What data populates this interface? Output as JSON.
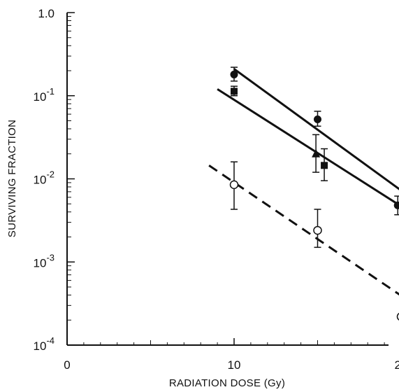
{
  "chart_data": {
    "type": "scatter",
    "title": "",
    "xlabel": "RADIATION DOSE (Gy)",
    "ylabel": "SURVIVING FRACTION",
    "x_scale": "linear",
    "y_scale": "log",
    "xlim": [
      0,
      24
    ],
    "ylim": [
      0.0001,
      1.0
    ],
    "x_ticks": [
      0,
      10,
      20
    ],
    "x_tick_labels": [
      "0",
      "10",
      "20"
    ],
    "y_ticks": [
      1.0,
      0.1,
      0.01,
      0.001,
      0.0001
    ],
    "y_tick_labels": [
      {
        "base": "1.0",
        "exp": ""
      },
      {
        "base": "10",
        "exp": "-1"
      },
      {
        "base": "10",
        "exp": "-2"
      },
      {
        "base": "10",
        "exp": "-3"
      },
      {
        "base": "10",
        "exp": "-4"
      }
    ],
    "grid": false,
    "legend": "none",
    "series": [
      {
        "marker": "filled-circle",
        "points": [
          {
            "x": 10,
            "y": 0.18,
            "err_low": 0.15,
            "err_high": 0.22
          },
          {
            "x": 15,
            "y": 0.052,
            "err_low": 0.043,
            "err_high": 0.065
          },
          {
            "x": 19.8,
            "y": 0.0048,
            "err_low": 0.0037,
            "err_high": 0.0062
          }
        ]
      },
      {
        "marker": "filled-square",
        "points": [
          {
            "x": 10,
            "y": 0.113,
            "err_low": 0.1,
            "err_high": 0.13
          },
          {
            "x": 15.4,
            "y": 0.0145,
            "err_low": 0.0095,
            "err_high": 0.023
          },
          {
            "x": 20.2,
            "y": 0.0062,
            "err_low": 0.0041,
            "err_high": 0.01
          }
        ]
      },
      {
        "marker": "filled-triangle",
        "points": [
          {
            "x": 14.9,
            "y": 0.02,
            "err_low": 0.012,
            "err_high": 0.034
          }
        ]
      },
      {
        "marker": "open-circle",
        "points": [
          {
            "x": 10,
            "y": 0.0085,
            "err_low": 0.0043,
            "err_high": 0.016
          },
          {
            "x": 15,
            "y": 0.0024,
            "err_low": 0.0015,
            "err_high": 0.0043
          },
          {
            "x": 20,
            "y": 0.00022
          }
        ]
      }
    ],
    "fit_lines": [
      {
        "style": "solid",
        "x": [
          10,
          22
        ],
        "y": [
          0.21,
          0.0037
        ]
      },
      {
        "style": "solid",
        "x": [
          9,
          22
        ],
        "y": [
          0.12,
          0.0026
        ]
      },
      {
        "style": "dashed",
        "x": [
          8.5,
          22
        ],
        "y": [
          0.0145,
          0.00021
        ]
      }
    ]
  }
}
